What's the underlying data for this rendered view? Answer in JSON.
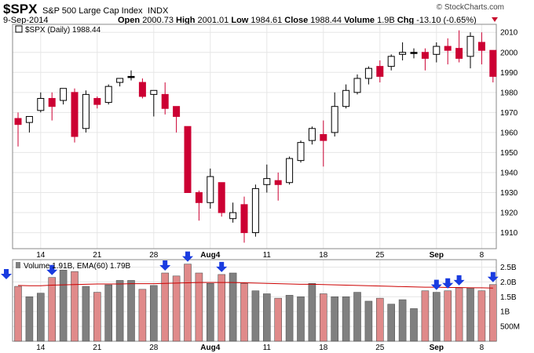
{
  "header": {
    "ticker": "$SPX",
    "name": "S&P 500 Large Cap Index",
    "exchange": "INDX",
    "date": "9-Sep-2014",
    "open_label": "Open",
    "open": "2000.73",
    "high_label": "High",
    "high": "2001.01",
    "low_label": "Low",
    "low": "1984.61",
    "close_label": "Close",
    "close": "1988.44",
    "volume_label": "Volume",
    "volume": "1.9B",
    "chg_label": "Chg",
    "chg": "-13.10 (-0.65%)",
    "watermark": "© StockCharts.com",
    "chg_icon": "down-triangle-icon"
  },
  "colors": {
    "up": "#ffffff",
    "down": "#cc0033",
    "flat": "#000000",
    "vol_up": "#808080",
    "vol_down": "#e08a8a",
    "ema": "#cc0000",
    "grid": "#e6e6e6",
    "arrow": "#1a3ce0"
  },
  "chart_data": [
    {
      "type": "candlestick",
      "legend": "$SPX (Daily) 1988.44",
      "ylim": [
        1902,
        2014
      ],
      "y_ticks": [
        1910,
        1920,
        1930,
        1940,
        1950,
        1960,
        1970,
        1980,
        1990,
        2000,
        2010
      ],
      "x_tick_labels": [
        {
          "index": 2,
          "label": "14"
        },
        {
          "index": 7,
          "label": "21"
        },
        {
          "index": 12,
          "label": "28"
        },
        {
          "index": 17,
          "label": "Aug4"
        },
        {
          "index": 22,
          "label": "11"
        },
        {
          "index": 27,
          "label": "18"
        },
        {
          "index": 32,
          "label": "25"
        },
        {
          "index": 37,
          "label": "Sep"
        },
        {
          "index": 41,
          "label": "8"
        }
      ],
      "candles": [
        {
          "o": 1967,
          "h": 1970,
          "l": 1953,
          "c": 1964
        },
        {
          "o": 1965,
          "h": 1968,
          "l": 1960,
          "c": 1968
        },
        {
          "o": 1971,
          "h": 1980,
          "l": 1970,
          "c": 1977
        },
        {
          "o": 1977,
          "h": 1980,
          "l": 1966,
          "c": 1973
        },
        {
          "o": 1976,
          "h": 1982,
          "l": 1974,
          "c": 1982
        },
        {
          "o": 1980,
          "h": 1982,
          "l": 1955,
          "c": 1958
        },
        {
          "o": 1962,
          "h": 1981,
          "l": 1960,
          "c": 1979
        },
        {
          "o": 1977,
          "h": 1978,
          "l": 1972,
          "c": 1974
        },
        {
          "o": 1975,
          "h": 1984,
          "l": 1974,
          "c": 1983
        },
        {
          "o": 1985,
          "h": 1987,
          "l": 1983,
          "c": 1987
        },
        {
          "o": 1988,
          "h": 1991,
          "l": 1986,
          "c": 1988
        },
        {
          "o": 1985,
          "h": 1987,
          "l": 1977,
          "c": 1978
        },
        {
          "o": 1979,
          "h": 1981,
          "l": 1968,
          "c": 1981
        },
        {
          "o": 1979,
          "h": 1985,
          "l": 1969,
          "c": 1972
        },
        {
          "o": 1973,
          "h": 1973,
          "l": 1960,
          "c": 1968
        },
        {
          "o": 1963,
          "h": 1963,
          "l": 1930,
          "c": 1930
        },
        {
          "o": 1930,
          "h": 1931,
          "l": 1916,
          "c": 1925
        },
        {
          "o": 1925,
          "h": 1942,
          "l": 1922,
          "c": 1938
        },
        {
          "o": 1935,
          "h": 1935,
          "l": 1918,
          "c": 1920
        },
        {
          "o": 1917,
          "h": 1925,
          "l": 1915,
          "c": 1920
        },
        {
          "o": 1924,
          "h": 1928,
          "l": 1905,
          "c": 1910
        },
        {
          "o": 1910,
          "h": 1934,
          "l": 1908,
          "c": 1932
        },
        {
          "o": 1934,
          "h": 1944,
          "l": 1930,
          "c": 1937
        },
        {
          "o": 1936,
          "h": 1940,
          "l": 1926,
          "c": 1934
        },
        {
          "o": 1935,
          "h": 1948,
          "l": 1934,
          "c": 1947
        },
        {
          "o": 1946,
          "h": 1956,
          "l": 1945,
          "c": 1955
        },
        {
          "o": 1956,
          "h": 1963,
          "l": 1954,
          "c": 1962
        },
        {
          "o": 1959,
          "h": 1966,
          "l": 1943,
          "c": 1956
        },
        {
          "o": 1960,
          "h": 1980,
          "l": 1958,
          "c": 1973
        },
        {
          "o": 1973,
          "h": 1984,
          "l": 1972,
          "c": 1981
        },
        {
          "o": 1980,
          "h": 1989,
          "l": 1979,
          "c": 1987
        },
        {
          "o": 1987,
          "h": 1993,
          "l": 1984,
          "c": 1992
        },
        {
          "o": 1993,
          "h": 1996,
          "l": 1985,
          "c": 1988
        },
        {
          "o": 1993,
          "h": 1999,
          "l": 1991,
          "c": 1998
        },
        {
          "o": 1999,
          "h": 2005,
          "l": 1996,
          "c": 2000
        },
        {
          "o": 2000,
          "h": 2002,
          "l": 1997,
          "c": 2000
        },
        {
          "o": 2000,
          "h": 2002,
          "l": 1991,
          "c": 1997
        },
        {
          "o": 1999,
          "h": 2005,
          "l": 1995,
          "c": 2003
        },
        {
          "o": 2003,
          "h": 2007,
          "l": 1994,
          "c": 2001
        },
        {
          "o": 2002,
          "h": 2011,
          "l": 1995,
          "c": 1997
        },
        {
          "o": 1998,
          "h": 2010,
          "l": 1992,
          "c": 2008
        },
        {
          "o": 2005,
          "h": 2010,
          "l": 1994,
          "c": 2001
        },
        {
          "o": 2001,
          "h": 2001,
          "l": 1985,
          "c": 1988
        }
      ]
    },
    {
      "type": "bar",
      "legend": "Volume 1.91B, EMA(60) 1.79B",
      "y_ticks": [
        {
          "value": 2.5,
          "label": "2.5B"
        },
        {
          "value": 2.0,
          "label": "2.0B"
        },
        {
          "value": 1.5,
          "label": "1.5B"
        },
        {
          "value": 1.0,
          "label": "1B"
        },
        {
          "value": 0.5,
          "label": "500M"
        }
      ],
      "ylim": [
        0.0,
        2.75
      ],
      "values": [
        1.85,
        1.5,
        1.62,
        2.15,
        2.4,
        2.35,
        1.85,
        1.65,
        1.9,
        2.05,
        2.05,
        1.75,
        1.88,
        2.3,
        2.2,
        2.6,
        2.3,
        1.95,
        2.25,
        2.3,
        1.95,
        1.7,
        1.6,
        1.45,
        1.55,
        1.5,
        1.95,
        1.6,
        1.5,
        1.5,
        1.65,
        1.35,
        1.45,
        1.25,
        1.4,
        1.1,
        1.7,
        1.65,
        1.7,
        1.8,
        1.8,
        1.7,
        1.91
      ],
      "ema": [
        1.88,
        1.87,
        1.87,
        1.89,
        1.9,
        1.91,
        1.92,
        1.93,
        1.93,
        1.93,
        1.94,
        1.94,
        1.94,
        1.95,
        1.96,
        1.97,
        1.98,
        1.98,
        1.98,
        1.98,
        1.97,
        1.96,
        1.95,
        1.94,
        1.93,
        1.92,
        1.92,
        1.91,
        1.9,
        1.89,
        1.88,
        1.87,
        1.86,
        1.85,
        1.84,
        1.83,
        1.82,
        1.82,
        1.81,
        1.81,
        1.8,
        1.8,
        1.79
      ],
      "arrows_at_index": [
        3,
        13,
        15,
        18,
        37,
        38,
        39,
        42
      ]
    }
  ]
}
